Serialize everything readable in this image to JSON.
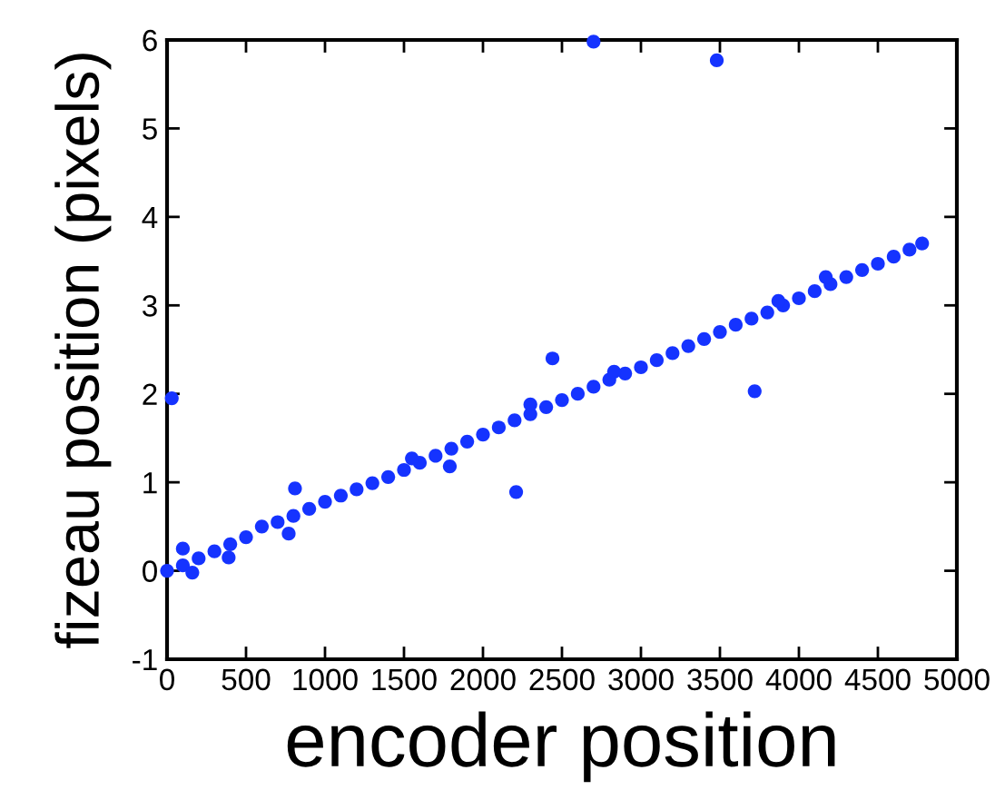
{
  "chart_data": {
    "type": "scatter",
    "xlabel": "encoder position",
    "ylabel": "fizeau position (pixels)",
    "x": [
      0,
      100,
      200,
      300,
      400,
      500,
      600,
      700,
      800,
      900,
      1000,
      1100,
      1200,
      1300,
      1400,
      1500,
      1600,
      1700,
      1800,
      1900,
      2000,
      2100,
      2200,
      2300,
      2400,
      2500,
      2600,
      2700,
      2800,
      2900,
      3000,
      3100,
      3200,
      3300,
      3400,
      3500,
      3600,
      3700,
      3800,
      3900,
      4000,
      4100,
      4200,
      4300,
      4400,
      4500,
      4600,
      4700,
      4780,
      30,
      100,
      160,
      390,
      770,
      810,
      1550,
      1790,
      2210,
      2300,
      2440,
      2700,
      2830,
      3480,
      3720,
      3870,
      4170
    ],
    "values": [
      0,
      0.06,
      0.14,
      0.22,
      0.3,
      0.38,
      0.5,
      0.55,
      0.62,
      0.7,
      0.78,
      0.85,
      0.92,
      0.99,
      1.06,
      1.14,
      1.22,
      1.3,
      1.38,
      1.46,
      1.54,
      1.62,
      1.7,
      1.77,
      1.85,
      1.93,
      2.0,
      2.08,
      2.16,
      2.23,
      2.3,
      2.38,
      2.46,
      2.54,
      2.62,
      2.7,
      2.78,
      2.85,
      2.92,
      3.0,
      3.08,
      3.16,
      3.24,
      3.32,
      3.4,
      3.47,
      3.55,
      3.63,
      3.7,
      1.95,
      0.25,
      -0.02,
      0.15,
      0.42,
      0.93,
      1.27,
      1.18,
      0.89,
      1.88,
      2.4,
      5.98,
      2.25,
      5.77,
      2.03,
      3.05,
      3.32
    ],
    "color": "#1533ff",
    "marker": "circle",
    "grid": false,
    "xlim": [
      0,
      5000
    ],
    "xticks": [
      0,
      500,
      1000,
      1500,
      2000,
      2500,
      3000,
      3500,
      4000,
      4500,
      5000
    ],
    "ylim": [
      -1,
      6
    ],
    "yticks": [
      -1,
      0,
      1,
      2,
      3,
      4,
      5,
      6
    ]
  }
}
